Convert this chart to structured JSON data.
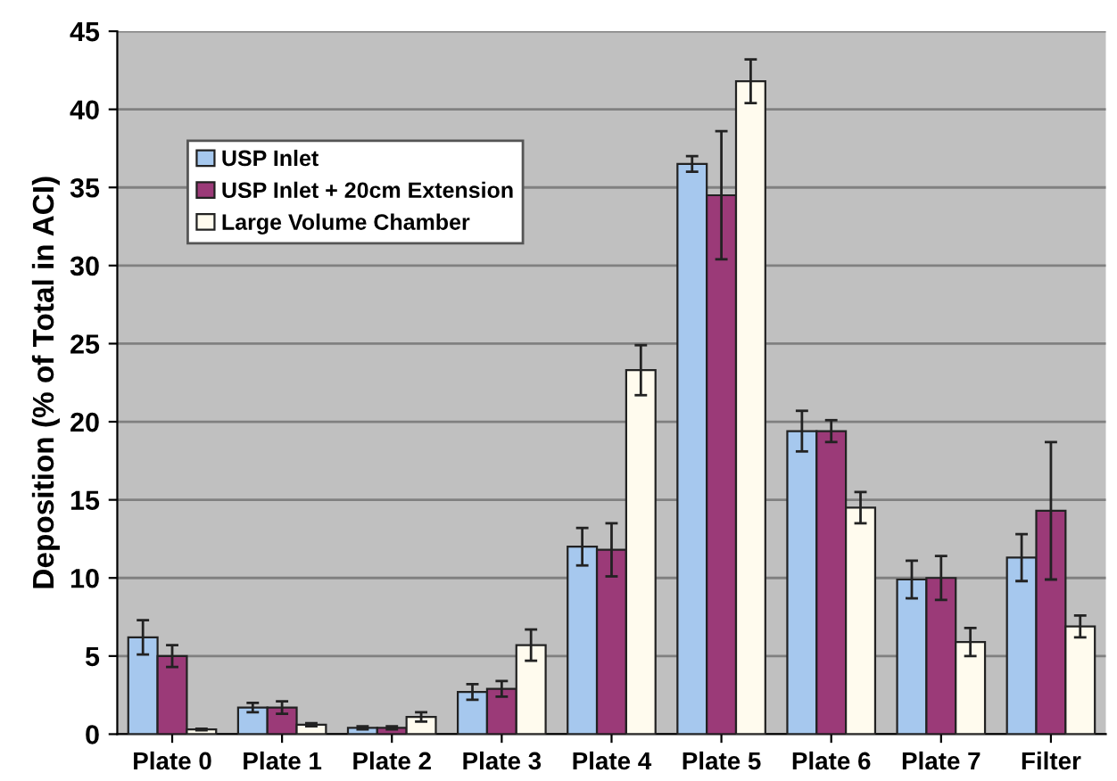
{
  "chart_data": {
    "type": "bar",
    "ylabel": "Deposition (% of Total in ACI)",
    "categories": [
      "Plate 0",
      "Plate 1",
      "Plate 2",
      "Plate 3",
      "Plate 4",
      "Plate 5",
      "Plate 6",
      "Plate 7",
      "Filter"
    ],
    "series": [
      {
        "name": "USP Inlet",
        "color": "#a6c8ee",
        "values": [
          6.2,
          1.7,
          0.4,
          2.7,
          12.0,
          36.5,
          19.4,
          9.9,
          11.3
        ],
        "errors": [
          1.1,
          0.3,
          0.1,
          0.5,
          1.2,
          0.5,
          1.3,
          1.2,
          1.5
        ]
      },
      {
        "name": "USP Inlet + 20cm Extension",
        "color": "#9b3a78",
        "values": [
          5.0,
          1.7,
          0.4,
          2.9,
          11.8,
          34.5,
          19.4,
          10.0,
          14.3
        ],
        "errors": [
          0.7,
          0.4,
          0.1,
          0.5,
          1.7,
          4.1,
          0.7,
          1.4,
          4.4
        ]
      },
      {
        "name": "Large Volume Chamber",
        "color": "#fffbee",
        "values": [
          0.3,
          0.6,
          1.1,
          5.7,
          23.3,
          41.8,
          14.5,
          5.9,
          6.9
        ],
        "errors": [
          0.05,
          0.1,
          0.3,
          1.0,
          1.6,
          1.4,
          1.0,
          0.9,
          0.7
        ]
      }
    ],
    "ylim": [
      0,
      45
    ],
    "yticks": [
      0,
      5,
      10,
      15,
      20,
      25,
      30,
      35,
      40,
      45
    ],
    "grid": "y",
    "legend": "top left"
  }
}
